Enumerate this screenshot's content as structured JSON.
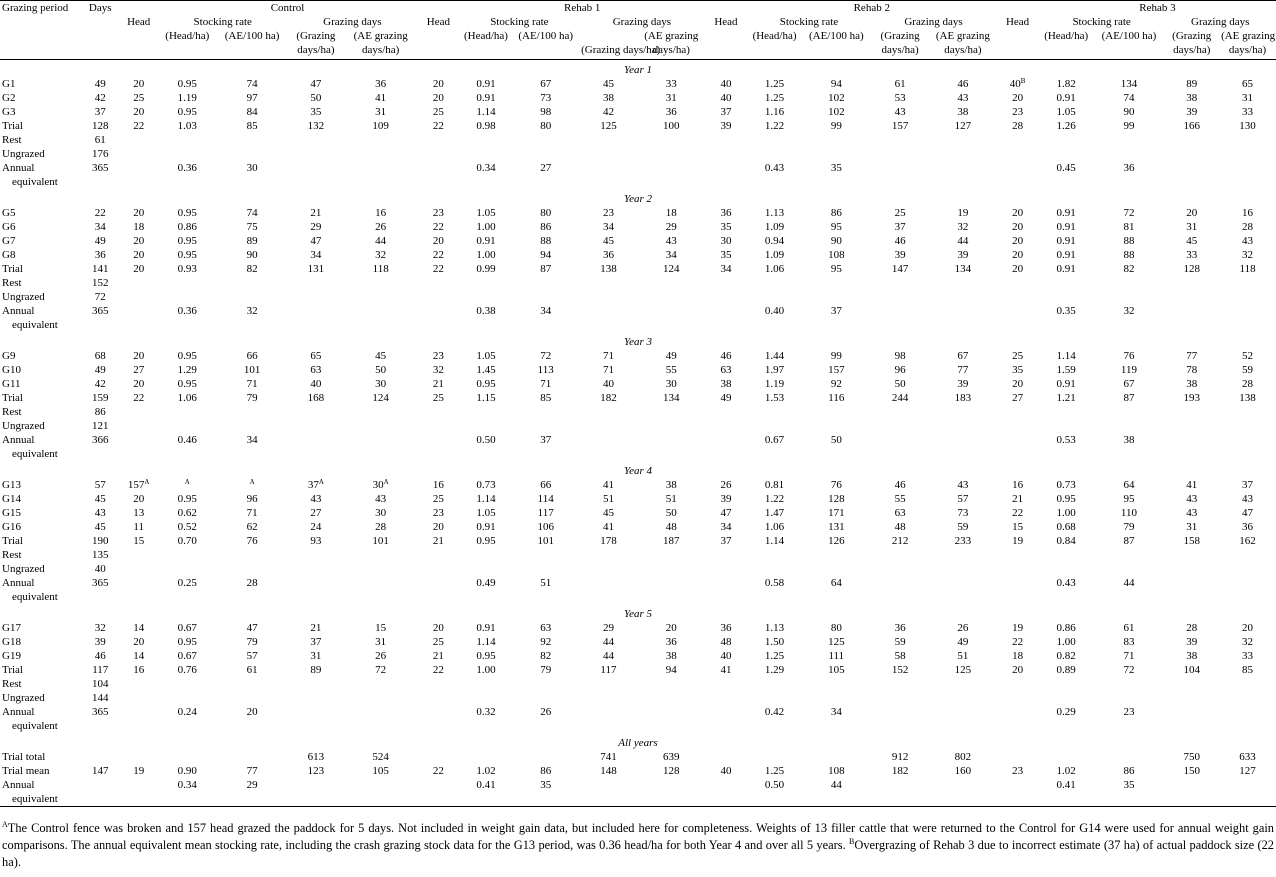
{
  "header": {
    "grazing_period": "Grazing period",
    "days": "Days",
    "head": "Head",
    "control": "Control",
    "rehab1": "Rehab 1",
    "rehab2": "Rehab 2",
    "rehab3": "Rehab 3",
    "stocking_rate": "Stocking rate",
    "grazing_days": "Grazing days",
    "head_ha": "(Head/ha)",
    "ae_100ha": "(AE/100 ha)",
    "gd_ha_1": "(Grazing",
    "gd_ha_2": "days/ha)",
    "ae_gd_1": "(AE grazing",
    "ae_gd_2": "days/ha)",
    "gd_ha_r3_1": "(Grazing",
    "gd_ha_r3_2": "days/ha)"
  },
  "sections": [
    {
      "label": "Year 1",
      "rows": [
        {
          "cells": [
            "G1",
            "49",
            "20",
            "0.95",
            "74",
            "47",
            "36",
            "20",
            "0.91",
            "67",
            "45",
            "33",
            "40",
            "1.25",
            "94",
            "61",
            "46",
            "40",
            "1.82",
            "134",
            "89",
            "65"
          ],
          "sups": {
            "17": "B"
          }
        },
        {
          "cells": [
            "G2",
            "42",
            "25",
            "1.19",
            "97",
            "50",
            "41",
            "20",
            "0.91",
            "73",
            "38",
            "31",
            "40",
            "1.25",
            "102",
            "53",
            "43",
            "20",
            "0.91",
            "74",
            "38",
            "31"
          ]
        },
        {
          "cells": [
            "G3",
            "37",
            "20",
            "0.95",
            "84",
            "35",
            "31",
            "25",
            "1.14",
            "98",
            "42",
            "36",
            "37",
            "1.16",
            "102",
            "43",
            "38",
            "23",
            "1.05",
            "90",
            "39",
            "33"
          ]
        },
        {
          "cells": [
            "Trial",
            "128",
            "22",
            "1.03",
            "85",
            "132",
            "109",
            "22",
            "0.98",
            "80",
            "125",
            "100",
            "39",
            "1.22",
            "99",
            "157",
            "127",
            "28",
            "1.26",
            "99",
            "166",
            "130"
          ]
        },
        {
          "cells": [
            "Rest",
            "61",
            "",
            "",
            "",
            "",
            "",
            "",
            "",
            "",
            "",
            "",
            "",
            "",
            "",
            "",
            "",
            "",
            "",
            "",
            "",
            ""
          ]
        },
        {
          "cells": [
            "Ungrazed",
            "176",
            "",
            "",
            "",
            "",
            "",
            "",
            "",
            "",
            "",
            "",
            "",
            "",
            "",
            "",
            "",
            "",
            "",
            "",
            "",
            ""
          ]
        },
        {
          "cells": [
            "Annual",
            "365",
            "",
            "0.36",
            "30",
            "",
            "",
            "",
            "0.34",
            "27",
            "",
            "",
            "",
            "0.43",
            "35",
            "",
            "",
            "",
            "0.45",
            "36",
            "",
            ""
          ],
          "cont": "equivalent"
        }
      ]
    },
    {
      "label": "Year 2",
      "rows": [
        {
          "cells": [
            "G5",
            "22",
            "20",
            "0.95",
            "74",
            "21",
            "16",
            "23",
            "1.05",
            "80",
            "23",
            "18",
            "36",
            "1.13",
            "86",
            "25",
            "19",
            "20",
            "0.91",
            "72",
            "20",
            "16"
          ]
        },
        {
          "cells": [
            "G6",
            "34",
            "18",
            "0.86",
            "75",
            "29",
            "26",
            "22",
            "1.00",
            "86",
            "34",
            "29",
            "35",
            "1.09",
            "95",
            "37",
            "32",
            "20",
            "0.91",
            "81",
            "31",
            "28"
          ]
        },
        {
          "cells": [
            "G7",
            "49",
            "20",
            "0.95",
            "89",
            "47",
            "44",
            "20",
            "0.91",
            "88",
            "45",
            "43",
            "30",
            "0.94",
            "90",
            "46",
            "44",
            "20",
            "0.91",
            "88",
            "45",
            "43"
          ]
        },
        {
          "cells": [
            "G8",
            "36",
            "20",
            "0.95",
            "90",
            "34",
            "32",
            "22",
            "1.00",
            "94",
            "36",
            "34",
            "35",
            "1.09",
            "108",
            "39",
            "39",
            "20",
            "0.91",
            "88",
            "33",
            "32"
          ]
        },
        {
          "cells": [
            "Trial",
            "141",
            "20",
            "0.93",
            "82",
            "131",
            "118",
            "22",
            "0.99",
            "87",
            "138",
            "124",
            "34",
            "1.06",
            "95",
            "147",
            "134",
            "20",
            "0.91",
            "82",
            "128",
            "118"
          ]
        },
        {
          "cells": [
            "Rest",
            "152",
            "",
            "",
            "",
            "",
            "",
            "",
            "",
            "",
            "",
            "",
            "",
            "",
            "",
            "",
            "",
            "",
            "",
            "",
            "",
            ""
          ]
        },
        {
          "cells": [
            "Ungrazed",
            "72",
            "",
            "",
            "",
            "",
            "",
            "",
            "",
            "",
            "",
            "",
            "",
            "",
            "",
            "",
            "",
            "",
            "",
            "",
            "",
            ""
          ]
        },
        {
          "cells": [
            "Annual",
            "365",
            "",
            "0.36",
            "32",
            "",
            "",
            "",
            "0.38",
            "34",
            "",
            "",
            "",
            "0.40",
            "37",
            "",
            "",
            "",
            "0.35",
            "32",
            "",
            ""
          ],
          "cont": "equivalent"
        }
      ]
    },
    {
      "label": "Year 3",
      "rows": [
        {
          "cells": [
            "G9",
            "68",
            "20",
            "0.95",
            "66",
            "65",
            "45",
            "23",
            "1.05",
            "72",
            "71",
            "49",
            "46",
            "1.44",
            "99",
            "98",
            "67",
            "25",
            "1.14",
            "76",
            "77",
            "52"
          ]
        },
        {
          "cells": [
            "G10",
            "49",
            "27",
            "1.29",
            "101",
            "63",
            "50",
            "32",
            "1.45",
            "113",
            "71",
            "55",
            "63",
            "1.97",
            "157",
            "96",
            "77",
            "35",
            "1.59",
            "119",
            "78",
            "59"
          ]
        },
        {
          "cells": [
            "G11",
            "42",
            "20",
            "0.95",
            "71",
            "40",
            "30",
            "21",
            "0.95",
            "71",
            "40",
            "30",
            "38",
            "1.19",
            "92",
            "50",
            "39",
            "20",
            "0.91",
            "67",
            "38",
            "28"
          ]
        },
        {
          "cells": [
            "Trial",
            "159",
            "22",
            "1.06",
            "79",
            "168",
            "124",
            "25",
            "1.15",
            "85",
            "182",
            "134",
            "49",
            "1.53",
            "116",
            "244",
            "183",
            "27",
            "1.21",
            "87",
            "193",
            "138"
          ]
        },
        {
          "cells": [
            "Rest",
            "86",
            "",
            "",
            "",
            "",
            "",
            "",
            "",
            "",
            "",
            "",
            "",
            "",
            "",
            "",
            "",
            "",
            "",
            "",
            "",
            ""
          ]
        },
        {
          "cells": [
            "Ungrazed",
            "121",
            "",
            "",
            "",
            "",
            "",
            "",
            "",
            "",
            "",
            "",
            "",
            "",
            "",
            "",
            "",
            "",
            "",
            "",
            "",
            ""
          ]
        },
        {
          "cells": [
            "Annual",
            "366",
            "",
            "0.46",
            "34",
            "",
            "",
            "",
            "0.50",
            "37",
            "",
            "",
            "",
            "0.67",
            "50",
            "",
            "",
            "",
            "0.53",
            "38",
            "",
            ""
          ],
          "cont": "equivalent"
        }
      ]
    },
    {
      "label": "Year 4",
      "rows": [
        {
          "cells": [
            "G13",
            "57",
            "157",
            "",
            "",
            "37",
            "30",
            "16",
            "0.73",
            "66",
            "41",
            "38",
            "26",
            "0.81",
            "76",
            "46",
            "43",
            "16",
            "0.73",
            "64",
            "41",
            "37"
          ],
          "sups": {
            "2": "A",
            "3": "A",
            "4": "A",
            "5": "A",
            "6": "A"
          }
        },
        {
          "cells": [
            "G14",
            "45",
            "20",
            "0.95",
            "96",
            "43",
            "43",
            "25",
            "1.14",
            "114",
            "51",
            "51",
            "39",
            "1.22",
            "128",
            "55",
            "57",
            "21",
            "0.95",
            "95",
            "43",
            "43"
          ]
        },
        {
          "cells": [
            "G15",
            "43",
            "13",
            "0.62",
            "71",
            "27",
            "30",
            "23",
            "1.05",
            "117",
            "45",
            "50",
            "47",
            "1.47",
            "171",
            "63",
            "73",
            "22",
            "1.00",
            "110",
            "43",
            "47"
          ]
        },
        {
          "cells": [
            "G16",
            "45",
            "11",
            "0.52",
            "62",
            "24",
            "28",
            "20",
            "0.91",
            "106",
            "41",
            "48",
            "34",
            "1.06",
            "131",
            "48",
            "59",
            "15",
            "0.68",
            "79",
            "31",
            "36"
          ]
        },
        {
          "cells": [
            "Trial",
            "190",
            "15",
            "0.70",
            "76",
            "93",
            "101",
            "21",
            "0.95",
            "101",
            "178",
            "187",
            "37",
            "1.14",
            "126",
            "212",
            "233",
            "19",
            "0.84",
            "87",
            "158",
            "162"
          ]
        },
        {
          "cells": [
            "Rest",
            "135",
            "",
            "",
            "",
            "",
            "",
            "",
            "",
            "",
            "",
            "",
            "",
            "",
            "",
            "",
            "",
            "",
            "",
            "",
            "",
            ""
          ]
        },
        {
          "cells": [
            "Ungrazed",
            "40",
            "",
            "",
            "",
            "",
            "",
            "",
            "",
            "",
            "",
            "",
            "",
            "",
            "",
            "",
            "",
            "",
            "",
            "",
            "",
            ""
          ]
        },
        {
          "cells": [
            "Annual",
            "365",
            "",
            "0.25",
            "28",
            "",
            "",
            "",
            "0.49",
            "51",
            "",
            "",
            "",
            "0.58",
            "64",
            "",
            "",
            "",
            "0.43",
            "44",
            "",
            ""
          ],
          "cont": "equivalent"
        }
      ]
    },
    {
      "label": "Year 5",
      "rows": [
        {
          "cells": [
            "G17",
            "32",
            "14",
            "0.67",
            "47",
            "21",
            "15",
            "20",
            "0.91",
            "63",
            "29",
            "20",
            "36",
            "1.13",
            "80",
            "36",
            "26",
            "19",
            "0.86",
            "61",
            "28",
            "20"
          ]
        },
        {
          "cells": [
            "G18",
            "39",
            "20",
            "0.95",
            "79",
            "37",
            "31",
            "25",
            "1.14",
            "92",
            "44",
            "36",
            "48",
            "1.50",
            "125",
            "59",
            "49",
            "22",
            "1.00",
            "83",
            "39",
            "32"
          ]
        },
        {
          "cells": [
            "G19",
            "46",
            "14",
            "0.67",
            "57",
            "31",
            "26",
            "21",
            "0.95",
            "82",
            "44",
            "38",
            "40",
            "1.25",
            "111",
            "58",
            "51",
            "18",
            "0.82",
            "71",
            "38",
            "33"
          ]
        },
        {
          "cells": [
            "Trial",
            "117",
            "16",
            "0.76",
            "61",
            "89",
            "72",
            "22",
            "1.00",
            "79",
            "117",
            "94",
            "41",
            "1.29",
            "105",
            "152",
            "125",
            "20",
            "0.89",
            "72",
            "104",
            "85"
          ]
        },
        {
          "cells": [
            "Rest",
            "104",
            "",
            "",
            "",
            "",
            "",
            "",
            "",
            "",
            "",
            "",
            "",
            "",
            "",
            "",
            "",
            "",
            "",
            "",
            "",
            ""
          ]
        },
        {
          "cells": [
            "Ungrazed",
            "144",
            "",
            "",
            "",
            "",
            "",
            "",
            "",
            "",
            "",
            "",
            "",
            "",
            "",
            "",
            "",
            "",
            "",
            "",
            "",
            ""
          ]
        },
        {
          "cells": [
            "Annual",
            "365",
            "",
            "0.24",
            "20",
            "",
            "",
            "",
            "0.32",
            "26",
            "",
            "",
            "",
            "0.42",
            "34",
            "",
            "",
            "",
            "0.29",
            "23",
            "",
            ""
          ],
          "cont": "equivalent"
        }
      ]
    },
    {
      "label": "All years",
      "rows": [
        {
          "cells": [
            "Trial total",
            "",
            "",
            "",
            "",
            "613",
            "524",
            "",
            "",
            "",
            "741",
            "639",
            "",
            "",
            "",
            "912",
            "802",
            "",
            "",
            "",
            "750",
            "633"
          ]
        },
        {
          "cells": [
            "Trial mean",
            "147",
            "19",
            "0.90",
            "77",
            "123",
            "105",
            "22",
            "1.02",
            "86",
            "148",
            "128",
            "40",
            "1.25",
            "108",
            "182",
            "160",
            "23",
            "1.02",
            "86",
            "150",
            "127"
          ]
        },
        {
          "cells": [
            "Annual",
            "",
            "",
            "0.34",
            "29",
            "",
            "",
            "",
            "0.41",
            "35",
            "",
            "",
            "",
            "0.50",
            "44",
            "",
            "",
            "",
            "0.41",
            "35",
            "",
            ""
          ],
          "cont": "equivalent"
        }
      ]
    }
  ],
  "footnotes": {
    "a_mark": "A",
    "a_text": "The Control fence was broken and 157 head grazed the paddock for 5 days. Not included in weight gain data, but included here for completeness. Weights of 13 filler cattle that were returned to the Control for G14 were used for annual weight gain comparisons. The annual equivalent mean stocking rate, including the crash grazing stock data for the G13 period, was 0.36 head/ha for both Year 4 and over all 5 years.",
    "b_mark": "B",
    "b_text": "Overgrazing of Rehab 3 due to incorrect estimate (37 ha) of actual paddock size (22 ha)."
  }
}
